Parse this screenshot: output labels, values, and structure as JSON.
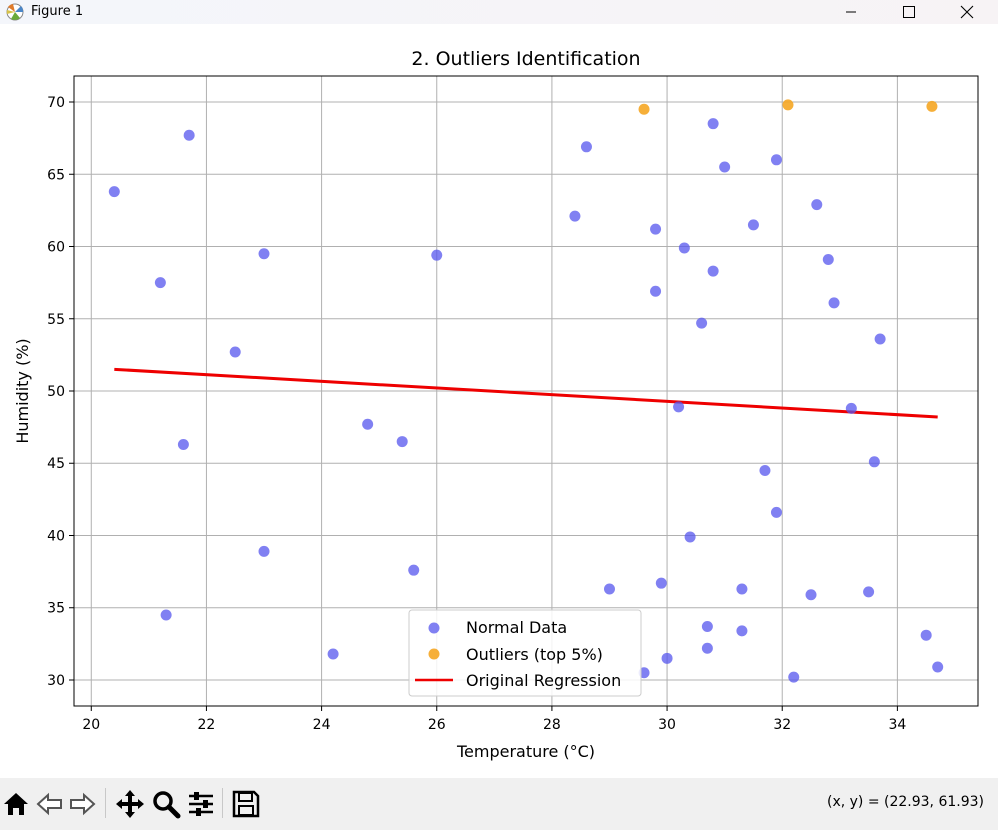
{
  "window": {
    "title": "Figure 1"
  },
  "toolbar": {
    "coords_text": "(x, y) = (22.93, 61.93)",
    "buttons": [
      "home-icon",
      "back-icon",
      "forward-icon",
      "pan-icon",
      "zoom-icon",
      "configure-icon",
      "save-icon"
    ]
  },
  "chart_data": {
    "type": "scatter",
    "title": "2. Outliers Identification",
    "xlabel": "Temperature (°C)",
    "ylabel": "Humidity (%)",
    "xlim": [
      19.7,
      35.4
    ],
    "ylim": [
      28.2,
      71.8
    ],
    "xticks": [
      20,
      22,
      24,
      26,
      28,
      30,
      32,
      34
    ],
    "yticks": [
      30,
      35,
      40,
      45,
      50,
      55,
      60,
      65,
      70
    ],
    "grid": true,
    "legend_position": "lower center",
    "colors": {
      "normal": "#5555ee",
      "outlier": "#f5a623",
      "regression": "#ee0000"
    },
    "series": [
      {
        "name": "Normal Data",
        "kind": "scatter",
        "points": [
          [
            20.4,
            63.8
          ],
          [
            21.2,
            57.5
          ],
          [
            21.7,
            67.7
          ],
          [
            21.6,
            46.3
          ],
          [
            21.3,
            34.5
          ],
          [
            22.5,
            52.7
          ],
          [
            23.0,
            59.5
          ],
          [
            23.0,
            38.9
          ],
          [
            24.2,
            31.8
          ],
          [
            24.8,
            47.7
          ],
          [
            25.4,
            46.5
          ],
          [
            25.6,
            37.6
          ],
          [
            26.0,
            59.4
          ],
          [
            28.4,
            62.1
          ],
          [
            28.6,
            66.9
          ],
          [
            29.0,
            36.3
          ],
          [
            29.6,
            30.5
          ],
          [
            29.8,
            61.2
          ],
          [
            29.8,
            56.9
          ],
          [
            29.9,
            36.7
          ],
          [
            30.0,
            31.5
          ],
          [
            30.2,
            48.9
          ],
          [
            30.3,
            59.9
          ],
          [
            30.4,
            39.9
          ],
          [
            30.6,
            54.7
          ],
          [
            30.7,
            33.7
          ],
          [
            30.7,
            32.2
          ],
          [
            30.8,
            68.5
          ],
          [
            30.8,
            58.3
          ],
          [
            31.0,
            65.5
          ],
          [
            31.3,
            36.3
          ],
          [
            31.3,
            33.4
          ],
          [
            31.5,
            61.5
          ],
          [
            31.7,
            44.5
          ],
          [
            31.9,
            66.0
          ],
          [
            31.9,
            41.6
          ],
          [
            32.2,
            30.2
          ],
          [
            32.5,
            35.9
          ],
          [
            32.6,
            62.9
          ],
          [
            32.8,
            59.1
          ],
          [
            32.9,
            56.1
          ],
          [
            33.2,
            48.8
          ],
          [
            33.5,
            36.1
          ],
          [
            33.6,
            45.1
          ],
          [
            33.7,
            53.6
          ],
          [
            34.5,
            33.1
          ],
          [
            34.7,
            30.9
          ]
        ]
      },
      {
        "name": "Outliers (top 5%)",
        "kind": "scatter",
        "points": [
          [
            29.6,
            69.5
          ],
          [
            32.1,
            69.8
          ],
          [
            34.6,
            69.7
          ]
        ]
      },
      {
        "name": "Original Regression",
        "kind": "line",
        "points": [
          [
            20.4,
            51.5
          ],
          [
            34.7,
            48.2
          ]
        ]
      }
    ]
  }
}
